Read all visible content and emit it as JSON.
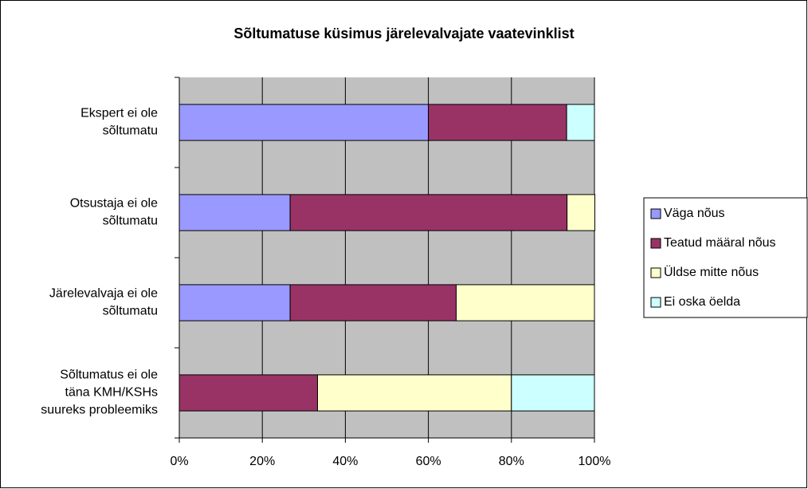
{
  "chart_data": {
    "type": "stacked_barh",
    "title": "Sõltumatuse küsimus järelevalvajate vaatevinklist",
    "categories": [
      "Ekspert ei ole sõltumatu",
      "Otsustaja ei ole sõltumatu",
      "Järelevalvaja ei ole sõltumatu",
      "Sõltumatus ei ole täna KMH/KSHs suureks probleemiks"
    ],
    "series": [
      {
        "name": "Väga nõus",
        "color": "#9999ff",
        "values": [
          60,
          26.7,
          26.7,
          0
        ]
      },
      {
        "name": "Teatud määral nõus",
        "color": "#993366",
        "values": [
          33.3,
          66.7,
          40,
          33.3
        ]
      },
      {
        "name": "Üldse mitte nõus",
        "color": "#ffffcc",
        "values": [
          0,
          6.7,
          33.3,
          46.7
        ]
      },
      {
        "name": "Ei oska öelda",
        "color": "#ccffff",
        "values": [
          6.7,
          0,
          0,
          20
        ]
      }
    ],
    "xlim": [
      0,
      100
    ],
    "xticks": [
      {
        "value": 0,
        "label": "0%"
      },
      {
        "value": 20,
        "label": "20%"
      },
      {
        "value": 40,
        "label": "40%"
      },
      {
        "value": 60,
        "label": "60%"
      },
      {
        "value": 80,
        "label": "80%"
      },
      {
        "value": 100,
        "label": "100%"
      }
    ],
    "grid": true,
    "legend": "right"
  }
}
